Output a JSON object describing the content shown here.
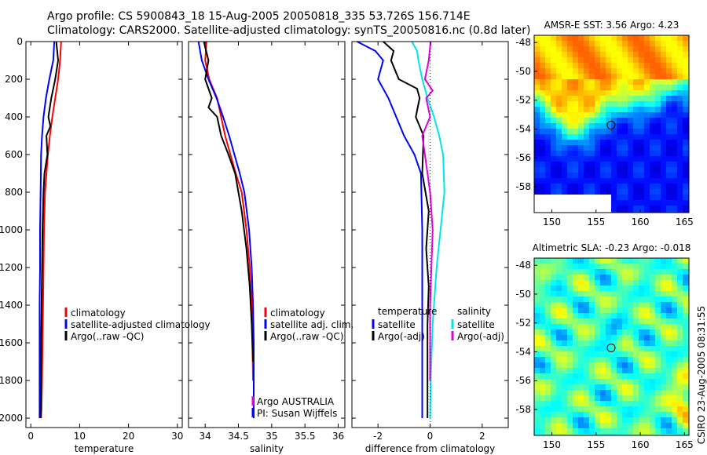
{
  "header": {
    "title_line1": "Argo profile: CS 5900843_18 15-Aug-2005 20050818_335 53.726S 156.714E",
    "title_line2": "Climatology: CARS2000. Satellite-adjusted climatology: synTS_20050816.nc (0.8d later)"
  },
  "credit": "CSIRO 23-Aug-2005 08:31:55",
  "colors": {
    "climatology": "#ff0000",
    "satellite": "#0000ff",
    "argo": "#000000",
    "salinity_satellite": "#00e5e5",
    "salinity_argo": "#e000e0"
  },
  "chart_data": [
    {
      "id": "temperature",
      "type": "line",
      "xlabel": "temperature",
      "ylabel": "",
      "xlim": [
        -1,
        31
      ],
      "ylim": [
        2050,
        0
      ],
      "x_ticks": [
        0,
        10,
        20,
        30
      ],
      "x_tick_labels": [
        "0",
        "10",
        "20",
        "30"
      ],
      "y_ticks": [
        0,
        200,
        400,
        600,
        800,
        1000,
        1200,
        1400,
        1600,
        1800,
        2000
      ],
      "y_tick_labels": [
        "0",
        "200",
        "400",
        "600",
        "800",
        "1000",
        "1200",
        "1400",
        "1600",
        "1800",
        "2000"
      ],
      "legend": [
        "climatology",
        "satellite-adjusted climatology",
        "Argo(..raw -QC)"
      ],
      "legend_position": "lower-right",
      "series": [
        {
          "name": "climatology",
          "color": "#ff0000",
          "x": [
            6.2,
            6.0,
            5.6,
            5.0,
            4.4,
            3.9,
            3.5,
            3.2,
            2.9,
            2.7,
            2.6,
            2.5,
            2.4,
            2.3,
            2.2,
            2.1
          ],
          "y": [
            0,
            100,
            200,
            300,
            400,
            500,
            600,
            700,
            800,
            1000,
            1200,
            1400,
            1600,
            1800,
            1950,
            2000
          ]
        },
        {
          "name": "satellite-adjusted climatology",
          "color": "#0000ff",
          "x": [
            4.8,
            4.6,
            3.8,
            3.1,
            2.6,
            2.3,
            2.1,
            2.0,
            1.9,
            1.9,
            1.8,
            1.8,
            1.8,
            1.8,
            1.8
          ],
          "y": [
            0,
            100,
            200,
            300,
            400,
            500,
            600,
            800,
            1000,
            1200,
            1400,
            1600,
            1800,
            1950,
            2000
          ]
        },
        {
          "name": "Argo(..raw -QC)",
          "color": "#000000",
          "x": [
            5.2,
            5.6,
            5.0,
            4.2,
            3.6,
            4.0,
            3.2,
            3.4,
            2.8,
            2.6,
            2.4,
            2.3,
            2.2,
            2.1,
            2.1,
            2.0
          ],
          "y": [
            0,
            100,
            200,
            300,
            400,
            450,
            500,
            600,
            700,
            800,
            1000,
            1200,
            1400,
            1600,
            1800,
            2000
          ]
        }
      ]
    },
    {
      "id": "salinity",
      "type": "line",
      "xlabel": "salinity",
      "ylabel": "",
      "xlim": [
        33.75,
        36.1
      ],
      "ylim": [
        2050,
        0
      ],
      "x_ticks": [
        34,
        34.5,
        35,
        35.5,
        36
      ],
      "x_tick_labels": [
        "34",
        "34.5",
        "35",
        "35.5",
        "36"
      ],
      "legend": [
        "climatology",
        "satellite adj. clim.",
        "Argo(..raw -QC)"
      ],
      "legend_position": "lower-right",
      "annotations": [
        "Argo AUSTRALIA",
        "PI: Susan Wijffels"
      ],
      "series": [
        {
          "name": "climatology",
          "color": "#ff0000",
          "x": [
            34.02,
            34.0,
            34.06,
            34.18,
            34.24,
            34.3,
            34.38,
            34.46,
            34.55,
            34.62,
            34.67,
            34.7,
            34.71,
            34.72
          ],
          "y": [
            0,
            100,
            200,
            300,
            400,
            500,
            600,
            700,
            800,
            1000,
            1200,
            1400,
            1600,
            1800
          ]
        },
        {
          "name": "satellite adj. clim.",
          "color": "#0000ff",
          "x": [
            33.9,
            33.95,
            34.05,
            34.17,
            34.27,
            34.36,
            34.44,
            34.52,
            34.59,
            34.66,
            34.7,
            34.72,
            34.73,
            34.73,
            34.73
          ],
          "y": [
            0,
            100,
            200,
            300,
            400,
            500,
            600,
            700,
            800,
            1000,
            1200,
            1400,
            1600,
            1800,
            2000
          ]
        },
        {
          "name": "Argo(..raw -QC)",
          "color": "#000000",
          "x": [
            33.98,
            34.05,
            34.0,
            34.1,
            34.05,
            34.18,
            34.24,
            34.35,
            34.45,
            34.55,
            34.62,
            34.67,
            34.7,
            34.72
          ],
          "y": [
            0,
            100,
            200,
            300,
            350,
            400,
            500,
            600,
            700,
            900,
            1100,
            1300,
            1500,
            1700
          ]
        }
      ]
    },
    {
      "id": "difference",
      "type": "line",
      "xlabel": "difference from climatology",
      "ylabel": "",
      "xlim": [
        -3,
        3
      ],
      "ylim": [
        2050,
        0
      ],
      "x_ticks": [
        -2,
        0,
        2
      ],
      "x_tick_labels": [
        "-2",
        "0",
        "2"
      ],
      "legend_titles": [
        "temperature",
        "salinity"
      ],
      "legend": [
        "satellite",
        "Argo(-adj)",
        "satellite",
        "Argo(-adj)"
      ],
      "legend_position": "lower-right",
      "series": [
        {
          "name": "temperature satellite",
          "color": "#0000ff",
          "x": [
            -2.8,
            -2.1,
            -1.8,
            -2.0,
            -1.6,
            -1.3,
            -1.0,
            -0.6,
            -0.35,
            -0.3,
            -0.3,
            -0.3,
            -0.3,
            -0.3
          ],
          "y": [
            0,
            50,
            100,
            200,
            300,
            400,
            500,
            600,
            700,
            1000,
            1200,
            1500,
            1800,
            2000
          ]
        },
        {
          "name": "temperature Argo(-adj)",
          "color": "#000000",
          "x": [
            -1.8,
            -1.4,
            -1.5,
            -1.2,
            -0.5,
            -0.4,
            -0.55,
            -0.25,
            -0.3,
            -0.05,
            -0.15,
            -0.05,
            -0.1,
            -0.1,
            -0.1
          ],
          "y": [
            0,
            50,
            100,
            200,
            250,
            300,
            400,
            500,
            700,
            900,
            1100,
            1300,
            1500,
            1800,
            2000
          ]
        },
        {
          "name": "salinity satellite",
          "color": "#00e5e5",
          "x": [
            -0.7,
            -0.5,
            -0.45,
            -0.3,
            -0.1,
            0.15,
            0.35,
            0.5,
            0.55,
            0.4,
            0.25,
            0.1,
            0.02,
            0.0
          ],
          "y": [
            0,
            50,
            100,
            200,
            300,
            400,
            500,
            600,
            800,
            1000,
            1200,
            1500,
            1800,
            2000
          ]
        },
        {
          "name": "salinity Argo(-adj)",
          "color": "#e000e0",
          "x": [
            0.02,
            -0.05,
            -0.2,
            0.1,
            -0.15,
            0.0,
            -0.3,
            -0.2,
            0.0,
            0.1,
            0.0,
            0.0
          ],
          "y": [
            0,
            100,
            200,
            260,
            300,
            400,
            500,
            600,
            800,
            1000,
            1400,
            1800
          ]
        }
      ]
    },
    {
      "id": "sst-map",
      "type": "heatmap",
      "title": "AMSR-E SST: 3.56 Argo: 4.23",
      "xlim": [
        148,
        165.5
      ],
      "ylim": [
        -59.8,
        -47.5
      ],
      "x_ticks": [
        150,
        155,
        160,
        165
      ],
      "x_tick_labels": [
        "150",
        "155",
        "160",
        "165"
      ],
      "y_ticks": [
        -48,
        -50,
        -52,
        -54,
        -56,
        -58
      ],
      "y_tick_labels": [
        "-48",
        "-50",
        "-52",
        "-54",
        "-56",
        "-58"
      ],
      "marker": {
        "lon": 156.7,
        "lat": -53.73
      }
    },
    {
      "id": "sla-map",
      "type": "heatmap",
      "title": "Altimetric SLA: -0.23 Argo: -0.018",
      "xlim": [
        148,
        165.5
      ],
      "ylim": [
        -59.8,
        -47.5
      ],
      "x_ticks": [
        150,
        155,
        160,
        165
      ],
      "x_tick_labels": [
        "150",
        "155",
        "160",
        "165"
      ],
      "y_ticks": [
        -48,
        -50,
        -52,
        -54,
        -56,
        -58
      ],
      "y_tick_labels": [
        "-48",
        "-50",
        "-52",
        "-54",
        "-56",
        "-58"
      ],
      "marker": {
        "lon": 156.7,
        "lat": -53.73
      }
    }
  ]
}
